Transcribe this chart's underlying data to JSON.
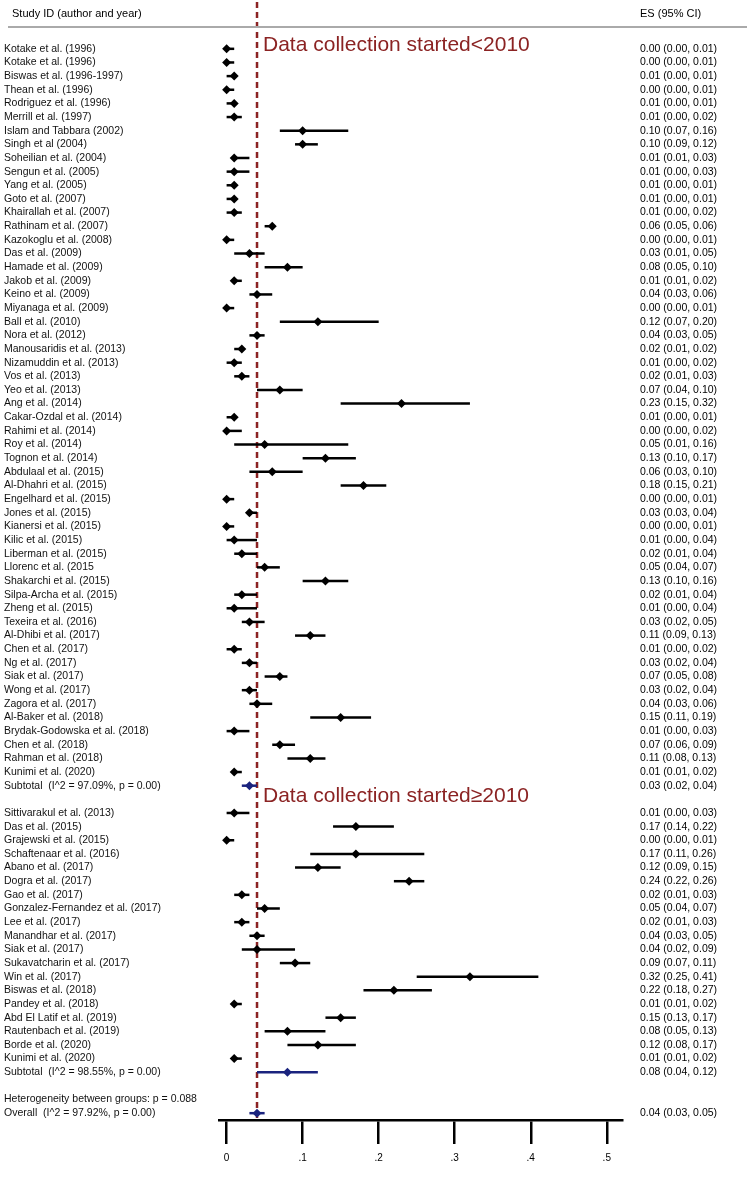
{
  "chart_data": {
    "type": "scatter",
    "orientation": "horizontal",
    "ylabel": "Study ID (author and year)",
    "annotations": [
      "ES (95% CI)",
      {
        "text": "Data collection started<2010",
        "x": 0.04
      },
      {
        "text": "Data collection started≥2010",
        "x": 0.04
      }
    ],
    "categories": [
      "Kotake et al. (1996)",
      "Kotake et al. (1996)",
      "Biswas et al. (1996-1997)",
      "Thean et al. (1996)",
      "Rodriguez et al. (1996)",
      "Merrill et al. (1997)",
      "Islam and Tabbara (2002)",
      "Singh et al (2004)",
      "Soheilian et al. (2004)",
      "Sengun et al. (2005)",
      "Yang et al. (2005)",
      "Goto et al. (2007)",
      "Khairallah et al. (2007)",
      "Rathinam et al. (2007)",
      "Kazokoglu et al. (2008)",
      "Das et al. (2009)",
      "Hamade et al. (2009)",
      "Jakob et al. (2009)",
      "Keino et al. (2009)",
      "Miyanaga et al. (2009)",
      "Ball et al. (2010)",
      "Nora et al. (2012)",
      "Manousaridis et al. (2013)",
      "Nizamuddin et al. (2013)",
      "Vos et al. (2013)",
      "Yeo et al. (2013)",
      "Ang et al. (2014)",
      "Cakar-Ozdal et al. (2014)",
      "Rahimi et al. (2014)",
      "Roy et al. (2014)",
      "Tognon et al. (2014)",
      "Abdulaal et al. (2015)",
      "Al-Dhahri et al. (2015)",
      "Engelhard et al. (2015)",
      "Jones et al. (2015)",
      "Kianersi et al. (2015)",
      "Kilic et al. (2015)",
      "Liberman et al. (2015)",
      "Llorenc et al. (2015",
      "Shakarchi et al. (2015)",
      "Silpa-Archa et al. (2015)",
      "Zheng et al. (2015)",
      "Texeira et al. (2016)",
      "Al-Dhibi et al. (2017)",
      "Chen et al. (2017)",
      "Ng et al. (2017)",
      "Siak et al. (2017)",
      "Wong et al. (2017)",
      "Zagora et al. (2017)",
      "Al-Baker et al. (2018)",
      "Brydak-Godowska et al. (2018)",
      "Chen et al. (2018)",
      "Rahman et al. (2018)",
      "Kunimi et al. (2020)",
      "Subtotal  (I^2 = 97.09%, p = 0.00)",
      null,
      "Sittivarakul et al. (2013)",
      "Das et al. (2015)",
      "Grajewski et al. (2015)",
      "Schaftenaar et al. (2016)",
      "Abano et al. (2017)",
      "Dogra et al. (2017)",
      "Gao et al. (2017)",
      "Gonzalez-Fernandez et al. (2017)",
      "Lee et al. (2017)",
      "Manandhar et al. (2017)",
      "Siak et al. (2017)",
      "Sukavatcharin et al. (2017)",
      "Win et al. (2017)",
      "Biswas et al. (2018)",
      "Pandey et al. (2018)",
      "Abd El Latif et al. (2019)",
      "Rautenbach et al. (2019)",
      "Borde et al. (2020)",
      "Kunimi et al. (2020)",
      "Subtotal  (I^2 = 98.55%, p = 0.00)",
      null,
      "Heterogeneity between groups: p = 0.088",
      "Overall  (I^2 = 97.92%, p = 0.00)"
    ],
    "series": [
      {
        "color": "#000000",
        "marker": "diamond",
        "values": [
          0.0,
          0.0,
          0.01,
          0.0,
          0.01,
          0.01,
          0.1,
          0.1,
          0.01,
          0.01,
          0.01,
          0.01,
          0.01,
          0.06,
          0.0,
          0.03,
          0.08,
          0.01,
          0.04,
          0.0,
          0.12,
          0.04,
          0.02,
          0.01,
          0.02,
          0.07,
          0.23,
          0.01,
          0.0,
          0.05,
          0.13,
          0.06,
          0.18,
          0.0,
          0.03,
          0.0,
          0.01,
          0.02,
          0.05,
          0.13,
          0.02,
          0.01,
          0.03,
          0.11,
          0.01,
          0.03,
          0.07,
          0.03,
          0.04,
          0.15,
          0.01,
          0.07,
          0.11,
          0.01,
          0.03,
          null,
          0.01,
          0.17,
          0.0,
          0.17,
          0.12,
          0.24,
          0.02,
          0.05,
          0.02,
          0.04,
          0.04,
          0.09,
          0.32,
          0.22,
          0.01,
          0.15,
          0.08,
          0.12,
          0.01,
          0.08,
          null,
          null,
          0.04
        ],
        "colors": [
          "#000000",
          "#000000",
          "#000000",
          "#000000",
          "#000000",
          "#000000",
          "#000000",
          "#000000",
          "#000000",
          "#000000",
          "#000000",
          "#000000",
          "#000000",
          "#000000",
          "#000000",
          "#000000",
          "#000000",
          "#000000",
          "#000000",
          "#000000",
          "#000000",
          "#000000",
          "#000000",
          "#000000",
          "#000000",
          "#000000",
          "#000000",
          "#000000",
          "#000000",
          "#000000",
          "#000000",
          "#000000",
          "#000000",
          "#000000",
          "#000000",
          "#000000",
          "#000000",
          "#000000",
          "#000000",
          "#000000",
          "#000000",
          "#000000",
          "#000000",
          "#000000",
          "#000000",
          "#000000",
          "#000000",
          "#000000",
          "#000000",
          "#000000",
          "#000000",
          "#000000",
          "#000000",
          "#000000",
          "#1a237e",
          "#000000",
          "#000000",
          "#000000",
          "#000000",
          "#000000",
          "#000000",
          "#000000",
          "#000000",
          "#000000",
          "#000000",
          "#000000",
          "#000000",
          "#000000",
          "#000000",
          "#000000",
          "#000000",
          "#000000",
          "#000000",
          "#000000",
          "#000000",
          "#1a237e",
          "#000000",
          "#000000",
          "#1a237e"
        ],
        "errors": [
          [
            0.0,
            0.01
          ],
          [
            0.0,
            0.01
          ],
          [
            0.0,
            0.01
          ],
          [
            0.0,
            0.01
          ],
          [
            0.0,
            0.01
          ],
          [
            0.0,
            0.02
          ],
          [
            0.07,
            0.16
          ],
          [
            0.09,
            0.12
          ],
          [
            0.01,
            0.03
          ],
          [
            0.0,
            0.03
          ],
          [
            0.0,
            0.01
          ],
          [
            0.0,
            0.01
          ],
          [
            0.0,
            0.02
          ],
          [
            0.05,
            0.06
          ],
          [
            0.0,
            0.01
          ],
          [
            0.01,
            0.05
          ],
          [
            0.05,
            0.1
          ],
          [
            0.01,
            0.02
          ],
          [
            0.03,
            0.06
          ],
          [
            0.0,
            0.01
          ],
          [
            0.07,
            0.2
          ],
          [
            0.03,
            0.05
          ],
          [
            0.01,
            0.02
          ],
          [
            0.0,
            0.02
          ],
          [
            0.01,
            0.03
          ],
          [
            0.04,
            0.1
          ],
          [
            0.15,
            0.32
          ],
          [
            0.0,
            0.01
          ],
          [
            0.0,
            0.02
          ],
          [
            0.01,
            0.16
          ],
          [
            0.1,
            0.17
          ],
          [
            0.03,
            0.1
          ],
          [
            0.15,
            0.21
          ],
          [
            0.0,
            0.01
          ],
          [
            0.03,
            0.04
          ],
          [
            0.0,
            0.01
          ],
          [
            0.0,
            0.04
          ],
          [
            0.01,
            0.04
          ],
          [
            0.04,
            0.07
          ],
          [
            0.1,
            0.16
          ],
          [
            0.01,
            0.04
          ],
          [
            0.0,
            0.04
          ],
          [
            0.02,
            0.05
          ],
          [
            0.09,
            0.13
          ],
          [
            0.0,
            0.02
          ],
          [
            0.02,
            0.04
          ],
          [
            0.05,
            0.08
          ],
          [
            0.02,
            0.04
          ],
          [
            0.03,
            0.06
          ],
          [
            0.11,
            0.19
          ],
          [
            0.0,
            0.03
          ],
          [
            0.06,
            0.09
          ],
          [
            0.08,
            0.13
          ],
          [
            0.01,
            0.02
          ],
          [
            0.02,
            0.04
          ],
          null,
          [
            0.0,
            0.03
          ],
          [
            0.14,
            0.22
          ],
          [
            0.0,
            0.01
          ],
          [
            0.11,
            0.26
          ],
          [
            0.09,
            0.15
          ],
          [
            0.22,
            0.26
          ],
          [
            0.01,
            0.03
          ],
          [
            0.04,
            0.07
          ],
          [
            0.01,
            0.03
          ],
          [
            0.03,
            0.05
          ],
          [
            0.02,
            0.09
          ],
          [
            0.07,
            0.11
          ],
          [
            0.25,
            0.41
          ],
          [
            0.18,
            0.27
          ],
          [
            0.01,
            0.02
          ],
          [
            0.13,
            0.17
          ],
          [
            0.05,
            0.13
          ],
          [
            0.08,
            0.17
          ],
          [
            0.01,
            0.02
          ],
          [
            0.04,
            0.12
          ],
          null,
          null,
          [
            0.03,
            0.05
          ]
        ],
        "value_labels": [
          "0.00 (0.00, 0.01)",
          "0.00 (0.00, 0.01)",
          "0.01 (0.00, 0.01)",
          "0.00 (0.00, 0.01)",
          "0.01 (0.00, 0.01)",
          "0.01 (0.00, 0.02)",
          "0.10 (0.07, 0.16)",
          "0.10 (0.09, 0.12)",
          "0.01 (0.01, 0.03)",
          "0.01 (0.00, 0.03)",
          "0.01 (0.00, 0.01)",
          "0.01 (0.00, 0.01)",
          "0.01 (0.00, 0.02)",
          "0.06 (0.05, 0.06)",
          "0.00 (0.00, 0.01)",
          "0.03 (0.01, 0.05)",
          "0.08 (0.05, 0.10)",
          "0.01 (0.01, 0.02)",
          "0.04 (0.03, 0.06)",
          "0.00 (0.00, 0.01)",
          "0.12 (0.07, 0.20)",
          "0.04 (0.03, 0.05)",
          "0.02 (0.01, 0.02)",
          "0.01 (0.00, 0.02)",
          "0.02 (0.01, 0.03)",
          "0.07 (0.04, 0.10)",
          "0.23 (0.15, 0.32)",
          "0.01 (0.00, 0.01)",
          "0.00 (0.00, 0.02)",
          "0.05 (0.01, 0.16)",
          "0.13 (0.10, 0.17)",
          "0.06 (0.03, 0.10)",
          "0.18 (0.15, 0.21)",
          "0.00 (0.00, 0.01)",
          "0.03 (0.03, 0.04)",
          "0.00 (0.00, 0.01)",
          "0.01 (0.00, 0.04)",
          "0.02 (0.01, 0.04)",
          "0.05 (0.04, 0.07)",
          "0.13 (0.10, 0.16)",
          "0.02 (0.01, 0.04)",
          "0.01 (0.00, 0.04)",
          "0.03 (0.02, 0.05)",
          "0.11 (0.09, 0.13)",
          "0.01 (0.00, 0.02)",
          "0.03 (0.02, 0.04)",
          "0.07 (0.05, 0.08)",
          "0.03 (0.02, 0.04)",
          "0.04 (0.03, 0.06)",
          "0.15 (0.11, 0.19)",
          "0.01 (0.00, 0.03)",
          "0.07 (0.06, 0.09)",
          "0.11 (0.08, 0.13)",
          "0.01 (0.01, 0.02)",
          "0.03 (0.02, 0.04)",
          null,
          "0.01 (0.00, 0.03)",
          "0.17 (0.14, 0.22)",
          "0.00 (0.00, 0.01)",
          "0.17 (0.11, 0.26)",
          "0.12 (0.09, 0.15)",
          "0.24 (0.22, 0.26)",
          "0.02 (0.01, 0.03)",
          "0.05 (0.04, 0.07)",
          "0.02 (0.01, 0.03)",
          "0.04 (0.03, 0.05)",
          "0.04 (0.02, 0.09)",
          "0.09 (0.07, 0.11)",
          "0.32 (0.25, 0.41)",
          "0.22 (0.18, 0.27)",
          "0.01 (0.01, 0.02)",
          "0.15 (0.13, 0.17)",
          "0.08 (0.05, 0.13)",
          "0.12 (0.08, 0.17)",
          "0.01 (0.01, 0.02)",
          "0.08 (0.04, 0.12)",
          null,
          null,
          "0.04 (0.03, 0.05)"
        ]
      }
    ],
    "xlim": [
      -0.01,
      0.52
    ],
    "xticks": [
      0,
      {
        "value": 0.1,
        "label": ".1"
      },
      {
        "value": 0.2,
        "label": ".2"
      },
      {
        "value": 0.3,
        "label": ".3"
      },
      {
        "value": 0.4,
        "label": ".4"
      },
      {
        "value": 0.5,
        "label": ".5"
      }
    ],
    "ref_lines": [
      {
        "axis": "x",
        "value": 0.04,
        "color": "#8b2323",
        "line_style": "dashed"
      }
    ],
    "grid": false,
    "legend": false
  }
}
